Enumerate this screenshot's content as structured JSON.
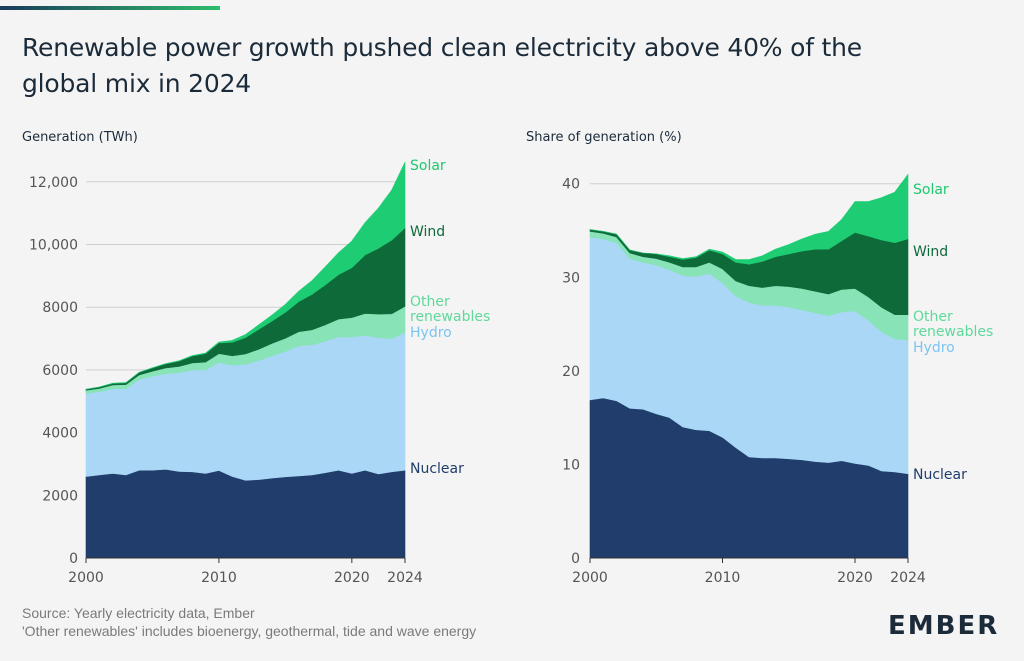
{
  "title_line1": "Renewable power growth pushed clean electricity above 40% of the",
  "title_line2": "global mix in 2024",
  "accent_color": "#2ebd6b",
  "footer": {
    "source": "Source: Yearly electricity data, Ember",
    "note": "'Other renewables' includes bioenergy, geothermal, tide and wave energy"
  },
  "logo_text": "EMBER",
  "colors": {
    "nuclear": "#213d6b",
    "hydro": "#a9d7f5",
    "other": "#88e3b6",
    "wind": "#0f6a3a",
    "solar": "#1ecc73",
    "nuclear_label": "#213d6b",
    "hydro_label": "#7cc4f0",
    "other_label": "#5fd99a",
    "wind_label": "#0f6a3a",
    "solar_label": "#1ec96e"
  },
  "chart_data": [
    {
      "type": "area",
      "stacked": true,
      "title": "Generation (TWh)",
      "x": [
        2000,
        2001,
        2002,
        2003,
        2004,
        2005,
        2006,
        2007,
        2008,
        2009,
        2010,
        2011,
        2012,
        2013,
        2014,
        2015,
        2016,
        2017,
        2018,
        2019,
        2020,
        2021,
        2022,
        2023,
        2024
      ],
      "ylim": [
        0,
        12600
      ],
      "yticks": [
        0,
        2000,
        4000,
        6000,
        8000,
        10000,
        12000
      ],
      "ytick_labels": [
        "0",
        "2000",
        "4000",
        "6000",
        "8000",
        "10,000",
        "12,000"
      ],
      "xticks": [
        2000,
        2010,
        2020,
        2024
      ],
      "xtick_labels": [
        "2000",
        "2010",
        "2020",
        "2024"
      ],
      "grid": true,
      "series": [
        {
          "name": "Nuclear",
          "key": "nuclear",
          "values": [
            2600,
            2650,
            2700,
            2650,
            2800,
            2800,
            2830,
            2760,
            2750,
            2700,
            2790,
            2600,
            2480,
            2500,
            2550,
            2590,
            2620,
            2650,
            2720,
            2800,
            2700,
            2800,
            2680,
            2750,
            2800
          ]
        },
        {
          "name": "Hydro",
          "key": "hydro",
          "values": [
            2650,
            2650,
            2700,
            2750,
            2900,
            3000,
            3050,
            3150,
            3250,
            3300,
            3450,
            3550,
            3700,
            3800,
            3900,
            4000,
            4150,
            4150,
            4200,
            4250,
            4350,
            4300,
            4350,
            4250,
            4400
          ]
        },
        {
          "name": "Other renewables",
          "key": "other",
          "values": [
            100,
            110,
            120,
            130,
            140,
            160,
            180,
            200,
            220,
            250,
            280,
            300,
            330,
            360,
            400,
            420,
            450,
            480,
            520,
            570,
            620,
            700,
            750,
            790,
            830
          ]
        },
        {
          "name": "Wind",
          "key": "wind",
          "values": [
            30,
            40,
            50,
            60,
            80,
            100,
            130,
            170,
            220,
            270,
            340,
            430,
            520,
            640,
            710,
            830,
            960,
            1130,
            1270,
            1420,
            1590,
            1870,
            2100,
            2350,
            2500
          ]
        },
        {
          "name": "Solar",
          "key": "solar",
          "values": [
            5,
            5,
            5,
            5,
            5,
            10,
            10,
            10,
            20,
            20,
            30,
            60,
            100,
            140,
            190,
            250,
            330,
            440,
            580,
            700,
            850,
            1030,
            1280,
            1600,
            2100
          ]
        }
      ]
    },
    {
      "type": "area",
      "stacked": true,
      "title": "Share of generation (%)",
      "x": [
        2000,
        2001,
        2002,
        2003,
        2004,
        2005,
        2006,
        2007,
        2008,
        2009,
        2010,
        2011,
        2012,
        2013,
        2014,
        2015,
        2016,
        2017,
        2018,
        2019,
        2020,
        2021,
        2022,
        2023,
        2024
      ],
      "ylim": [
        0,
        42
      ],
      "yticks": [
        0,
        10,
        20,
        30,
        40
      ],
      "ytick_labels": [
        "0",
        "10",
        "20",
        "30",
        "40"
      ],
      "xticks": [
        2000,
        2010,
        2020,
        2024
      ],
      "xtick_labels": [
        "2000",
        "2010",
        "2020",
        "2024"
      ],
      "grid": true,
      "series": [
        {
          "name": "Nuclear",
          "key": "nuclear",
          "values": [
            16.9,
            17.1,
            16.8,
            16.0,
            15.9,
            15.4,
            15.0,
            14.0,
            13.7,
            13.6,
            12.9,
            11.8,
            10.8,
            10.7,
            10.7,
            10.6,
            10.5,
            10.3,
            10.2,
            10.4,
            10.1,
            9.9,
            9.3,
            9.2,
            9.0
          ]
        },
        {
          "name": "Hydro",
          "key": "hydro",
          "values": [
            17.4,
            17.0,
            16.9,
            16.0,
            15.7,
            15.9,
            15.8,
            16.2,
            16.4,
            16.8,
            16.5,
            16.2,
            16.5,
            16.3,
            16.3,
            16.2,
            16.0,
            15.9,
            15.7,
            15.9,
            16.3,
            15.5,
            14.9,
            14.2,
            14.3
          ]
        },
        {
          "name": "Other renewables",
          "key": "other",
          "values": [
            0.6,
            0.6,
            0.6,
            0.6,
            0.6,
            0.7,
            0.8,
            0.9,
            1.0,
            1.2,
            1.5,
            1.6,
            1.8,
            1.9,
            2.1,
            2.2,
            2.3,
            2.3,
            2.3,
            2.4,
            2.4,
            2.5,
            2.6,
            2.6,
            2.7
          ]
        },
        {
          "name": "Wind",
          "key": "wind",
          "values": [
            0.2,
            0.2,
            0.3,
            0.3,
            0.4,
            0.5,
            0.6,
            0.8,
            1.0,
            1.3,
            1.6,
            2.0,
            2.3,
            2.8,
            3.1,
            3.5,
            4.0,
            4.5,
            4.8,
            5.2,
            6.0,
            6.5,
            7.2,
            7.7,
            8.1
          ]
        },
        {
          "name": "Solar",
          "key": "solar",
          "values": [
            0.0,
            0.0,
            0.0,
            0.0,
            0.0,
            0.0,
            0.1,
            0.1,
            0.1,
            0.1,
            0.2,
            0.3,
            0.5,
            0.6,
            0.8,
            1.0,
            1.3,
            1.6,
            1.9,
            2.3,
            3.3,
            3.7,
            4.5,
            5.4,
            6.9
          ]
        }
      ]
    }
  ]
}
